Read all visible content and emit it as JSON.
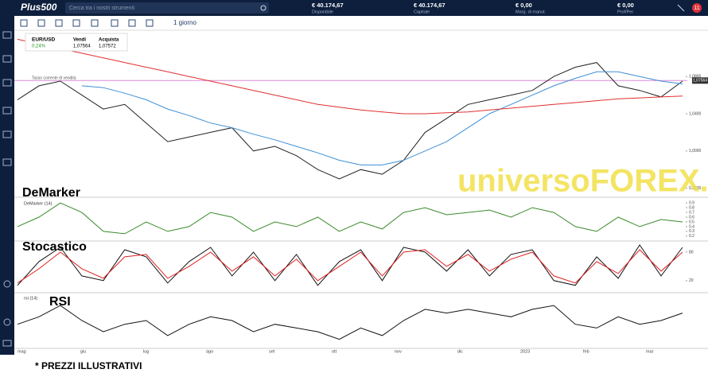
{
  "header": {
    "logo": "Plus500",
    "search": "Cerca tra i nostri strumenti",
    "stats": [
      {
        "value": "€ 40.174,67",
        "label": "Disponibile"
      },
      {
        "value": "€ 40.174,67",
        "label": "Capitale"
      },
      {
        "value": "€ 0,00",
        "label": "Marg. di manut."
      },
      {
        "value": "€ 0,00",
        "label": "Prof/Per"
      }
    ],
    "badge": "11"
  },
  "toolbar": {
    "timeframe": "1 giorno"
  },
  "instrument": {
    "symbol": "EUR/USD",
    "change": "0,24%",
    "sell_label": "Vendi",
    "sell": "1,07564",
    "buy_label": "Acquista",
    "buy": "1,07572",
    "line_label": "Tasso corrente di vendita"
  },
  "x_labels": [
    "mag",
    "giu",
    "lug",
    "ago",
    "set",
    "ott",
    "nov",
    "dic",
    "2023",
    "feb",
    "mar"
  ],
  "watermark": "universoFOREX.it",
  "footer": "* PREZZI ILLUSTRATIVI",
  "chart_data": [
    {
      "type": "line",
      "ylim": [
        0.952,
        1.128
      ],
      "yticks": [
        {
          "value": 1.08,
          "label": "1,0800"
        },
        {
          "value": 1.04,
          "label": "1,0400"
        },
        {
          "value": 1.0,
          "label": "1,0000"
        },
        {
          "value": 0.96,
          "label": "0,9600"
        }
      ],
      "hline": {
        "value": 1.07564,
        "label": "1,07564",
        "color": "#d98bd9"
      },
      "series": [
        {
          "color": "#222222",
          "values": [
            1.055,
            1.07,
            1.075,
            1.06,
            1.045,
            1.05,
            1.03,
            1.01,
            1.015,
            1.02,
            1.025,
            1.0,
            1.005,
            0.995,
            0.98,
            0.97,
            0.98,
            0.975,
            0.99,
            1.02,
            1.035,
            1.05,
            1.055,
            1.06,
            1.065,
            1.08,
            1.09,
            1.095,
            1.07,
            1.065,
            1.058,
            1.075
          ]
        },
        {
          "color": "#3d8fd6",
          "values": [
            null,
            null,
            null,
            1.07,
            1.068,
            1.062,
            1.055,
            1.045,
            1.038,
            1.03,
            1.025,
            1.018,
            1.012,
            1.005,
            0.998,
            0.99,
            0.985,
            0.985,
            0.99,
            1.0,
            1.01,
            1.025,
            1.04,
            1.05,
            1.06,
            1.07,
            1.078,
            1.085,
            1.085,
            1.08,
            1.075,
            1.072
          ]
        },
        {
          "color": "#e03030",
          "values": [
            1.12,
            1.115,
            1.11,
            1.105,
            1.1,
            1.095,
            1.09,
            1.085,
            1.08,
            1.075,
            1.07,
            1.065,
            1.06,
            1.055,
            1.05,
            1.047,
            1.044,
            1.042,
            1.04,
            1.04,
            1.041,
            1.042,
            1.044,
            1.046,
            1.048,
            1.05,
            1.052,
            1.054,
            1.056,
            1.057,
            1.058,
            1.059
          ]
        }
      ]
    },
    {
      "type": "line",
      "title": "DeMarker",
      "legend": "DeMarker (14)",
      "ylim": [
        0.13,
        0.97
      ],
      "yticks": [
        0.2,
        0.3,
        0.4,
        0.5,
        0.6,
        0.7,
        0.8,
        0.9
      ],
      "series": [
        {
          "color": "#3a8a2a",
          "values": [
            0.4,
            0.6,
            0.9,
            0.7,
            0.3,
            0.25,
            0.5,
            0.3,
            0.4,
            0.7,
            0.6,
            0.3,
            0.5,
            0.4,
            0.6,
            0.3,
            0.5,
            0.35,
            0.7,
            0.8,
            0.65,
            0.7,
            0.75,
            0.6,
            0.8,
            0.7,
            0.4,
            0.3,
            0.6,
            0.4,
            0.55,
            0.5
          ]
        }
      ]
    },
    {
      "type": "line",
      "title": "Stocastico",
      "ylim": [
        -2,
        105
      ],
      "yticks": [
        20,
        80
      ],
      "series": [
        {
          "color": "#111111",
          "values": [
            10,
            60,
            90,
            30,
            20,
            85,
            70,
            15,
            60,
            90,
            30,
            80,
            20,
            75,
            10,
            60,
            85,
            20,
            90,
            80,
            40,
            85,
            30,
            75,
            85,
            20,
            10,
            70,
            25,
            95,
            30,
            90
          ]
        },
        {
          "color": "#e02020",
          "values": [
            15,
            45,
            80,
            45,
            25,
            70,
            75,
            25,
            50,
            80,
            40,
            70,
            30,
            65,
            20,
            50,
            80,
            30,
            80,
            85,
            50,
            75,
            40,
            65,
            80,
            30,
            15,
            60,
            35,
            85,
            40,
            80
          ]
        }
      ]
    },
    {
      "type": "line",
      "title": "RSI",
      "legend": "rsi (14)",
      "ylim": [
        15,
        85
      ],
      "series": [
        {
          "color": "#111111",
          "values": [
            45,
            55,
            70,
            50,
            35,
            45,
            50,
            30,
            45,
            55,
            50,
            35,
            45,
            40,
            35,
            25,
            40,
            30,
            50,
            65,
            60,
            65,
            60,
            55,
            65,
            70,
            45,
            40,
            55,
            45,
            50,
            60
          ]
        }
      ]
    }
  ]
}
